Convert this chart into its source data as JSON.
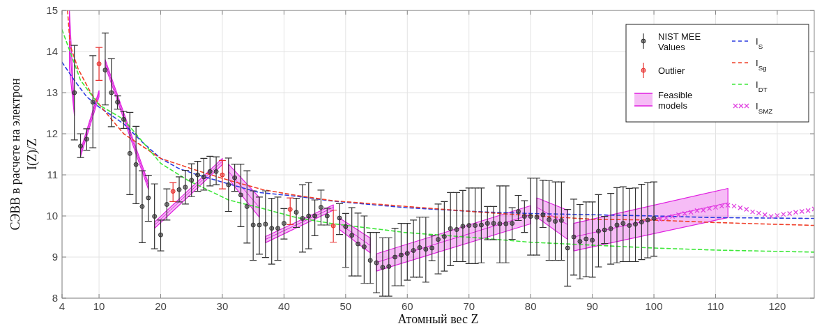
{
  "chart_data": {
    "type": "scatter",
    "xlabel": "Атомный вес Z",
    "ylabel": "СЭВВ в расчете на электрон\nI(Z)/Z",
    "xlim": [
      4,
      126
    ],
    "xticks": [
      4,
      10,
      20,
      30,
      40,
      50,
      60,
      70,
      80,
      90,
      100,
      110,
      120
    ],
    "ylim": [
      8,
      15
    ],
    "yticks": [
      8,
      9,
      10,
      11,
      12,
      13,
      14,
      15
    ],
    "grid": true,
    "legend": "top right",
    "series": [
      {
        "name": "NIST MEE Values",
        "marker": "circle",
        "color": "#333333",
        "x": [
          6,
          7,
          8,
          9,
          11,
          12,
          13,
          14,
          15,
          16,
          17,
          18,
          19,
          20,
          21,
          23,
          24,
          25,
          26,
          27,
          28,
          29,
          31,
          32,
          33,
          34,
          35,
          36,
          37,
          38,
          39,
          40,
          42,
          43,
          44,
          45,
          46,
          47,
          49,
          50,
          51,
          52,
          53,
          54,
          55,
          56,
          57,
          58,
          59,
          60,
          61,
          62,
          63,
          64,
          65,
          66,
          67,
          68,
          69,
          70,
          71,
          72,
          73,
          74,
          75,
          76,
          77,
          78,
          79,
          80,
          81,
          82,
          83,
          84,
          85,
          86,
          87,
          88,
          89,
          90,
          91,
          92,
          93,
          94,
          95,
          96,
          97,
          98,
          99,
          100
        ],
        "values": [
          13.0,
          11.7,
          11.87,
          12.77,
          13.55,
          13.0,
          12.77,
          12.35,
          11.52,
          11.25,
          10.23,
          10.44,
          9.99,
          9.54,
          10.28,
          10.64,
          10.7,
          10.87,
          11.0,
          10.95,
          11.08,
          11.08,
          10.76,
          10.93,
          10.51,
          10.23,
          9.78,
          9.78,
          9.8,
          9.7,
          9.7,
          9.82,
          10.09,
          9.94,
          10.0,
          10.0,
          10.21,
          10.0,
          9.95,
          9.74,
          9.53,
          9.32,
          9.25,
          8.92,
          8.86,
          8.75,
          8.77,
          9.0,
          9.05,
          9.09,
          9.16,
          9.23,
          9.19,
          9.22,
          9.43,
          9.5,
          9.69,
          9.67,
          9.75,
          9.77,
          9.77,
          9.78,
          9.82,
          9.82,
          9.81,
          9.81,
          9.82,
          10.11,
          9.99,
          9.99,
          9.97,
          10.03,
          9.91,
          9.87,
          9.89,
          9.22,
          9.49,
          9.38,
          9.44,
          9.41,
          9.63,
          9.66,
          9.69,
          9.78,
          9.82,
          9.77,
          9.8,
          9.85,
          9.9,
          9.94
        ],
        "errors": [
          [
            11.85,
            14.15
          ],
          [
            11.42,
            12.0
          ],
          [
            11.6,
            12.12
          ],
          [
            11.66,
            13.9
          ],
          [
            12.7,
            14.45
          ],
          [
            12.17,
            13.83
          ],
          [
            12.6,
            12.92
          ],
          [
            12.13,
            12.55
          ],
          [
            10.52,
            12.52
          ],
          [
            10.3,
            12.18
          ],
          [
            9.35,
            11.1
          ],
          [
            9.87,
            10.99
          ],
          [
            9.2,
            10.78
          ],
          [
            9.15,
            9.9
          ],
          [
            9.9,
            10.66
          ],
          [
            10.34,
            10.95
          ],
          [
            10.29,
            11.11
          ],
          [
            10.47,
            11.27
          ],
          [
            10.6,
            11.33
          ],
          [
            10.63,
            11.4
          ],
          [
            10.73,
            11.45
          ],
          [
            10.76,
            11.44
          ],
          [
            10.11,
            11.41
          ],
          [
            10.6,
            11.26
          ],
          [
            9.74,
            11.26
          ],
          [
            9.34,
            11.1
          ],
          [
            8.92,
            10.61
          ],
          [
            9.07,
            10.46
          ],
          [
            8.99,
            10.61
          ],
          [
            8.83,
            10.43
          ],
          [
            8.92,
            10.46
          ],
          [
            9.44,
            10.18
          ],
          [
            9.72,
            10.43
          ],
          [
            9.12,
            10.76
          ],
          [
            9.2,
            10.81
          ],
          [
            9.52,
            10.39
          ],
          [
            9.78,
            10.63
          ],
          [
            9.78,
            10.19
          ],
          [
            9.55,
            10.3
          ],
          [
            8.75,
            10.06
          ],
          [
            8.54,
            10.2
          ],
          [
            8.54,
            10.07
          ],
          [
            8.36,
            10.0
          ],
          [
            8.36,
            9.6
          ],
          [
            8.13,
            9.6
          ],
          [
            8.05,
            9.47
          ],
          [
            8.05,
            9.47
          ],
          [
            8.3,
            9.7
          ],
          [
            8.3,
            9.82
          ],
          [
            8.44,
            9.82
          ],
          [
            8.51,
            9.9
          ],
          [
            8.51,
            9.97
          ],
          [
            8.39,
            9.97
          ],
          [
            8.91,
            9.53
          ],
          [
            8.59,
            10.29
          ],
          [
            8.66,
            10.35
          ],
          [
            8.79,
            10.57
          ],
          [
            8.89,
            10.57
          ],
          [
            8.89,
            10.62
          ],
          [
            8.84,
            10.68
          ],
          [
            8.84,
            10.68
          ],
          [
            8.86,
            10.68
          ],
          [
            9.42,
            10.23
          ],
          [
            9.42,
            10.23
          ],
          [
            8.86,
            10.73
          ],
          [
            8.86,
            10.73
          ],
          [
            9.43,
            10.2
          ],
          [
            9.89,
            10.5
          ],
          [
            9.6,
            10.37
          ],
          [
            9.05,
            10.92
          ],
          [
            9.05,
            10.92
          ],
          [
            9.72,
            10.87
          ],
          [
            8.92,
            10.86
          ],
          [
            8.92,
            10.83
          ],
          [
            8.92,
            10.83
          ],
          [
            8.29,
            10.16
          ],
          [
            8.56,
            10.41
          ],
          [
            8.47,
            10.28
          ],
          [
            8.52,
            10.34
          ],
          [
            8.51,
            10.34
          ],
          [
            8.76,
            10.52
          ],
          [
            9.33,
            9.99
          ],
          [
            8.83,
            10.55
          ],
          [
            8.86,
            10.69
          ],
          [
            8.89,
            10.71
          ],
          [
            8.89,
            10.67
          ],
          [
            8.89,
            10.68
          ],
          [
            8.94,
            10.77
          ],
          [
            8.98,
            10.81
          ],
          [
            9.02,
            10.83
          ]
        ]
      },
      {
        "name": "Outlier",
        "marker": "circle",
        "color": "#e8312f",
        "x": [
          10,
          22,
          30,
          41,
          48
        ],
        "values": [
          13.7,
          10.6,
          11.0,
          10.16,
          9.76
        ],
        "errors": [
          [
            13.3,
            14.1
          ],
          [
            10.35,
            10.81
          ],
          [
            10.66,
            11.35
          ],
          [
            9.79,
            10.44
          ],
          [
            9.36,
            10.14
          ]
        ]
      },
      {
        "name": "Feasible models",
        "type": "line",
        "color": "#e020e0",
        "x": [
          5.2,
          6,
          6.5,
          7,
          10,
          10.5,
          11,
          18,
          18.5,
          19,
          30,
          30.5,
          31,
          36,
          36.5,
          37,
          48,
          48.5,
          49,
          54,
          54.5,
          55,
          80,
          80.5,
          81,
          86,
          86.5,
          87,
          112
        ],
        "values": [
          14.3,
          12.53,
          null,
          11.53,
          12.98,
          null,
          13.73,
          10.73,
          null,
          9.78,
          11.33,
          null,
          11.08,
          10.21,
          null,
          9.43,
          10.21,
          null,
          9.81,
          9.28,
          null,
          8.87,
          10.03,
          null,
          10.21,
          9.79,
          null,
          9.49,
          10.32
        ],
        "lower": [
          13.6,
          12.45,
          null,
          11.45,
          12.9,
          null,
          13.65,
          10.65,
          null,
          9.7,
          11.25,
          null,
          10.9,
          9.97,
          null,
          9.35,
          10.14,
          null,
          9.67,
          9.1,
          null,
          8.66,
          9.81,
          null,
          9.97,
          9.43,
          null,
          9.15,
          9.96
        ],
        "upper": [
          15.0,
          12.6,
          null,
          11.6,
          13.05,
          null,
          13.8,
          10.8,
          null,
          9.85,
          11.4,
          null,
          11.26,
          10.45,
          null,
          9.5,
          10.27,
          null,
          9.95,
          9.46,
          null,
          9.08,
          10.25,
          null,
          10.44,
          10.14,
          null,
          9.82,
          10.67
        ]
      },
      {
        "name": "I$_{S}$",
        "type": "line",
        "line_style": "dashed",
        "color": "#2a3be0",
        "x": [
          4,
          6,
          8,
          10,
          12,
          14,
          17,
          20,
          23,
          26,
          31,
          36,
          42,
          48,
          60,
          72,
          80,
          90,
          100,
          110,
          126
        ],
        "values": [
          13.74,
          13.3,
          12.9,
          12.65,
          12.45,
          12.24,
          11.8,
          11.4,
          11.15,
          11.0,
          10.78,
          10.57,
          10.48,
          10.36,
          10.2,
          10.1,
          10.06,
          10.03,
          10.0,
          9.96,
          9.94
        ]
      },
      {
        "name": "I$_{Sg}$",
        "type": "line",
        "line_style": "dashed",
        "color": "#f0402a",
        "x": [
          4.9,
          5.3,
          6.6,
          8.8,
          10.8,
          14,
          20,
          26,
          31,
          36.6,
          42,
          48,
          60,
          72,
          80,
          90,
          100,
          110,
          126
        ],
        "values": [
          15.0,
          14.16,
          13.58,
          12.96,
          12.57,
          12.0,
          11.4,
          11.1,
          10.87,
          10.64,
          10.5,
          10.37,
          10.23,
          10.09,
          10.01,
          9.92,
          9.9,
          9.84,
          9.77
        ]
      },
      {
        "name": "I$_{DT}$",
        "type": "line",
        "line_style": "dashed",
        "color": "#3ee83a",
        "x": [
          4,
          7,
          10,
          14,
          20,
          24.5,
          27,
          31,
          36.6,
          42,
          48,
          55.8,
          59.5,
          72,
          80,
          90,
          100,
          110,
          126
        ],
        "values": [
          14.53,
          13.3,
          12.7,
          12.35,
          11.28,
          10.86,
          10.68,
          10.39,
          10.18,
          9.96,
          9.81,
          9.67,
          9.6,
          9.46,
          9.36,
          9.29,
          9.22,
          9.17,
          9.12
        ]
      },
      {
        "name": "I$_{SMZ}$",
        "marker": "cross",
        "color": "#e040e0",
        "x": [
          101,
          102,
          103,
          104,
          105,
          106,
          107,
          108,
          109,
          110,
          111,
          112,
          113,
          114,
          115,
          116,
          117,
          118,
          119,
          120,
          121,
          122,
          123,
          124,
          125,
          126
        ],
        "values": [
          9.92,
          9.95,
          9.99,
          10.03,
          10.06,
          10.09,
          10.13,
          10.14,
          10.18,
          10.21,
          10.24,
          10.26,
          10.24,
          10.2,
          10.16,
          10.1,
          10.07,
          10.03,
          9.99,
          10.01,
          10.04,
          10.06,
          10.09,
          10.11,
          10.13,
          10.17
        ]
      }
    ]
  }
}
